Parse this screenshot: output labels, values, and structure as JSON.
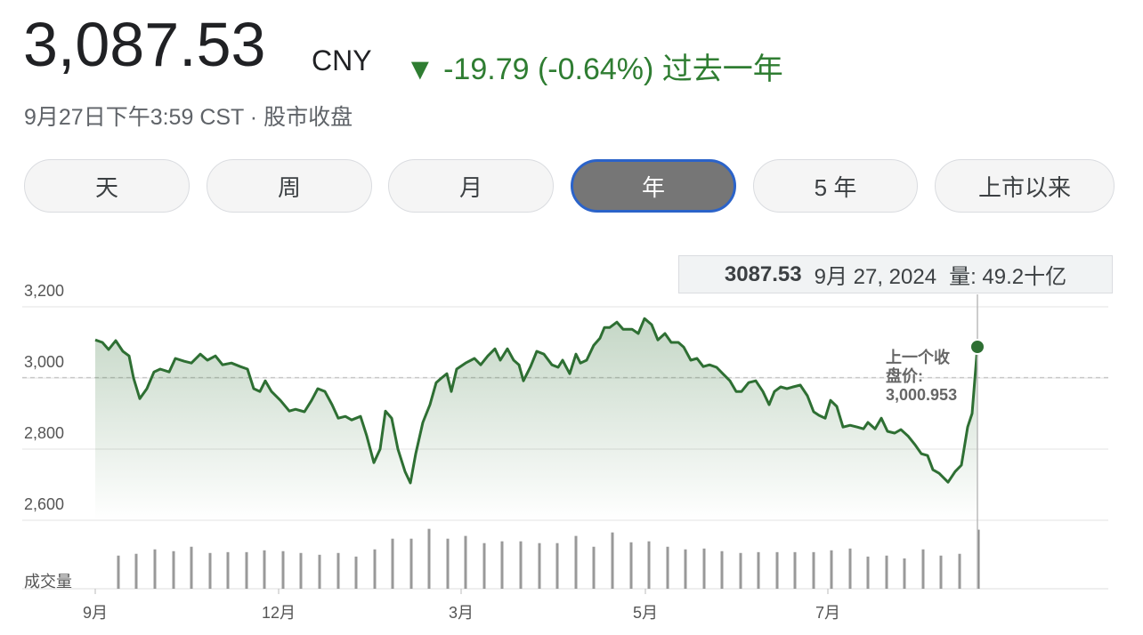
{
  "header": {
    "price": "3,087.53",
    "currency": "CNY",
    "change_arrow": "▼",
    "change": "-19.79 (-0.64%)",
    "period": "过去一年",
    "timestamp": "9月27日下午3:59 CST · 股市收盘"
  },
  "tabs": [
    "天",
    "周",
    "月",
    "年",
    "5 年",
    "上市以来"
  ],
  "selected_tab": 3,
  "tooltip": {
    "price": "3087.53",
    "date": "9月 27, 2024",
    "volume": "量: 49.2十亿"
  },
  "chart_data": {
    "type": "line",
    "color": "#2e6f33",
    "x": [
      0,
      2,
      3.75,
      5.75,
      7.75,
      9.5,
      10.75,
      12.5,
      14.5,
      16.5,
      18.25,
      20.75,
      22.5,
      25,
      27,
      29.5,
      31.5,
      33.75,
      35.75,
      38.25,
      40.75,
      42.75,
      44.5,
      46.25,
      47.75,
      49.5,
      52,
      54.5,
      56.25,
      58.75,
      60.75,
      62.5,
      64.5,
      66.5,
      68.25,
      70.25,
      72,
      74.5,
      76.25,
      78.25,
      80,
      81.5,
      83.25,
      85,
      87,
      88.5,
      90,
      92,
      94,
      95.75,
      97.25,
      98.75,
      100,
      101.5,
      104,
      106.5,
      108.25,
      110.25,
      112.25,
      113.75,
      115.75,
      117.5,
      119,
      120.25,
      122.25,
      124,
      126,
      128.25,
      130,
      131.25,
      133.25,
      135,
      136.25,
      138,
      140,
      141.75,
      143,
      144.5,
      146.5,
      148.25,
      150.75,
      152.5,
      154.25,
      156.25,
      158,
      160,
      161.75,
      163.75,
      165.25,
      167.25,
      169,
      170.75,
      172.5,
      174.5,
      176.25,
      178.25,
      180,
      181.5,
      183.5,
      185.5,
      187.5,
      189.25,
      190.75,
      192.5,
      194.25,
      196,
      198,
      200,
      201.75,
      203.25,
      205,
      206.5,
      208.25,
      210,
      212,
      214,
      215.75,
      217,
      219,
      220.75,
      222.5,
      224.5,
      226.25,
      228.25,
      230.25,
      232,
      233.75,
      235.25,
      237,
      239.5,
      241.5,
      243.25,
      245,
      246.25,
      247.75
    ],
    "values": [
      3107,
      3100,
      3080,
      3105,
      3075,
      3062,
      3000,
      2942,
      2970,
      3017,
      3025,
      3017,
      3055,
      3047,
      3042,
      3067,
      3050,
      3062,
      3037,
      3042,
      3032,
      3025,
      2970,
      2962,
      2992,
      2962,
      2937,
      2907,
      2912,
      2905,
      2937,
      2970,
      2962,
      2925,
      2887,
      2892,
      2882,
      2892,
      2837,
      2762,
      2800,
      2907,
      2887,
      2800,
      2737,
      2705,
      2787,
      2875,
      2925,
      2987,
      3000,
      3012,
      2962,
      3025,
      3042,
      3055,
      3037,
      3062,
      3082,
      3050,
      3082,
      3050,
      3037,
      2992,
      3032,
      3075,
      3067,
      3037,
      3030,
      3050,
      3012,
      3067,
      3042,
      3050,
      3092,
      3112,
      3142,
      3142,
      3157,
      3137,
      3137,
      3125,
      3167,
      3150,
      3107,
      3125,
      3100,
      3100,
      3087,
      3050,
      3055,
      3032,
      3037,
      3030,
      3012,
      2992,
      2962,
      2962,
      2987,
      2992,
      2962,
      2925,
      2962,
      2975,
      2970,
      2975,
      2980,
      2950,
      2905,
      2895,
      2887,
      2937,
      2920,
      2862,
      2867,
      2862,
      2857,
      2875,
      2857,
      2887,
      2850,
      2845,
      2855,
      2837,
      2812,
      2787,
      2782,
      2742,
      2732,
      2707,
      2737,
      2755,
      2862,
      2900,
      3087.53
    ],
    "xlim": [
      0,
      284.5
    ],
    "xticks": [
      {
        "value": 0,
        "label": "9月"
      },
      {
        "value": 51.5,
        "label": "12月"
      },
      {
        "value": 102.75,
        "label": "3月"
      },
      {
        "value": 154.5,
        "label": "5月"
      },
      {
        "value": 205.75,
        "label": "7月"
      }
    ],
    "ylim": [
      2600,
      3200
    ],
    "yticks": [
      {
        "value": 3200,
        "label": "3,200"
      },
      {
        "value": 3000,
        "label": "3,000"
      },
      {
        "value": 2800,
        "label": "2,800"
      },
      {
        "value": 2600,
        "label": "2,600"
      }
    ],
    "grid": true,
    "previous_close": {
      "title": "上一个收盘价:",
      "value": 3000.953,
      "value_label": "3,000.953"
    },
    "volume": {
      "label": "成交量",
      "color": "#999999",
      "ylim": [
        0,
        60
      ],
      "x": [
        6.5,
        11.5,
        16.75,
        22,
        27,
        32.25,
        37.25,
        42.5,
        47.5,
        52.75,
        57.75,
        63,
        68.25,
        73.25,
        78.5,
        83.5,
        88.75,
        93.75,
        99,
        104,
        109.25,
        114.25,
        119.5,
        124.75,
        129.75,
        135,
        140,
        145.25,
        150.5,
        155.5,
        160.75,
        165.75,
        171,
        176,
        181.25,
        186.25,
        191.5,
        196.5,
        201.75,
        206.75,
        212,
        217,
        222.25,
        227.25,
        232.5,
        237.5,
        242.75,
        248
      ],
      "values": [
        27.6,
        29.1,
        32.8,
        31.3,
        35.0,
        29.8,
        30.5,
        30.5,
        32.0,
        31.3,
        29.8,
        28.3,
        29.8,
        26.8,
        32.8,
        41.7,
        41.7,
        49.9,
        41.7,
        44.0,
        38.0,
        39.5,
        39.5,
        38.0,
        38.0,
        44.0,
        35.0,
        46.9,
        38.7,
        39.5,
        35.0,
        32.8,
        33.5,
        31.3,
        29.8,
        30.5,
        30.5,
        30.5,
        30.5,
        32.0,
        33.5,
        26.8,
        27.6,
        25.3,
        32.8,
        27.6,
        29.1,
        49.2
      ]
    }
  }
}
